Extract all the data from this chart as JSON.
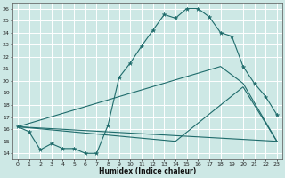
{
  "xlabel": "Humidex (Indice chaleur)",
  "xlim": [
    -0.5,
    23.5
  ],
  "ylim": [
    13.5,
    26.5
  ],
  "xticks": [
    0,
    1,
    2,
    3,
    4,
    5,
    6,
    7,
    8,
    9,
    10,
    11,
    12,
    13,
    14,
    15,
    16,
    17,
    18,
    19,
    20,
    21,
    22,
    23
  ],
  "yticks": [
    14,
    15,
    16,
    17,
    18,
    19,
    20,
    21,
    22,
    23,
    24,
    25,
    26
  ],
  "bg_color": "#cde8e5",
  "grid_color": "#ffffff",
  "line_color": "#1e6b6b",
  "main_x": [
    0,
    1,
    2,
    3,
    4,
    5,
    6,
    7,
    8,
    9,
    10,
    11,
    12,
    13,
    14,
    15,
    16,
    17,
    18,
    19,
    20,
    21,
    22,
    23
  ],
  "main_y": [
    16.2,
    15.8,
    14.3,
    14.8,
    14.4,
    14.4,
    14.0,
    14.0,
    16.3,
    20.3,
    21.5,
    22.9,
    24.2,
    25.5,
    25.2,
    26.0,
    26.0,
    25.3,
    24.0,
    23.7,
    21.2,
    19.8,
    18.7,
    17.2
  ],
  "line2_x": [
    0,
    23
  ],
  "line2_y": [
    16.2,
    15.0
  ],
  "line3_x": [
    0,
    18,
    20,
    23
  ],
  "line3_y": [
    16.2,
    21.2,
    19.8,
    15.0
  ],
  "line4_x": [
    0,
    14,
    20,
    23
  ],
  "line4_y": [
    16.2,
    15.0,
    19.5,
    15.0
  ],
  "xlabel_fontsize": 5.5,
  "tick_fontsize": 4.5
}
